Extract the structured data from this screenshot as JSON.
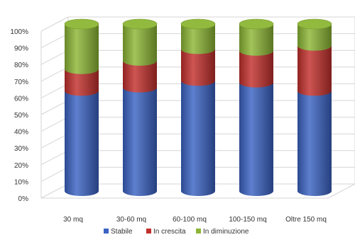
{
  "chart_data": {
    "type": "bar",
    "stacked": true,
    "percent": true,
    "style": "3d-cylinder",
    "categories": [
      "30 mq",
      "30-60 mq",
      "60-100 mq",
      "100-150 mq",
      "Oltre 150 mq"
    ],
    "series": [
      {
        "name": "Stabile",
        "color": "#3b63c3",
        "values": [
          60,
          62,
          66,
          65,
          60
        ]
      },
      {
        "name": "In crescita",
        "color": "#c2302c",
        "values": [
          13,
          16,
          19,
          19,
          27
        ]
      },
      {
        "name": "In diminuzione",
        "color": "#8cb635",
        "values": [
          27,
          22,
          15,
          16,
          13
        ]
      }
    ],
    "y_ticks": [
      "0%",
      "10%",
      "20%",
      "30%",
      "40%",
      "50%",
      "60%",
      "70%",
      "80%",
      "90%",
      "100%"
    ],
    "ylim": [
      0,
      100
    ],
    "grid": true,
    "legend_position": "bottom"
  }
}
